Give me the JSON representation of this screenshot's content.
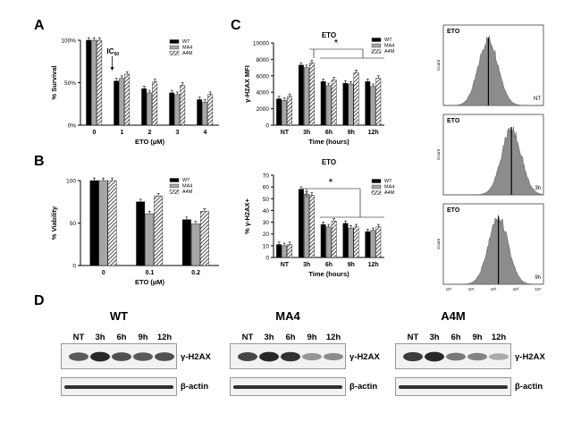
{
  "colors": {
    "wt": "#000000",
    "ma4": "#a6a6a6",
    "a4m": "hatch",
    "hist_fill": "#8c8c8c"
  },
  "panels": {
    "A": "A",
    "B": "B",
    "C": "C",
    "D": "D"
  },
  "legend": {
    "wt": "WT",
    "ma4": "MA4",
    "a4m": "A4M"
  },
  "chart_data": [
    {
      "id": "A",
      "type": "bar",
      "categories": [
        "0",
        "1",
        "2",
        "3",
        "4"
      ],
      "xlabel": "ETO (µM)",
      "ylabel": "% Survival",
      "yticks": [
        "0%",
        "50%",
        "100%"
      ],
      "ylim": [
        0,
        100
      ],
      "annotation": {
        "main": "IC",
        "sub": "50"
      },
      "series": [
        {
          "name": "WT",
          "values": [
            100,
            52,
            43,
            38,
            30
          ]
        },
        {
          "name": "MA4",
          "values": [
            100,
            55,
            38,
            36,
            27
          ]
        },
        {
          "name": "A4M",
          "values": [
            100,
            60,
            51,
            47,
            36
          ]
        }
      ]
    },
    {
      "id": "B",
      "type": "bar",
      "categories": [
        "0",
        "0.1",
        "0.2"
      ],
      "xlabel": "ETO (µM)",
      "ylabel": "% Viability",
      "yticks": [
        "0",
        "50",
        "100"
      ],
      "ylim": [
        0,
        100
      ],
      "series": [
        {
          "name": "WT",
          "values": [
            100,
            75,
            54
          ]
        },
        {
          "name": "MA4",
          "values": [
            100,
            61,
            49
          ]
        },
        {
          "name": "A4M",
          "values": [
            100,
            82,
            64
          ]
        }
      ]
    },
    {
      "id": "C1",
      "type": "bar",
      "title": "ETO",
      "categories": [
        "NT",
        "3h",
        "6h",
        "9h",
        "12h"
      ],
      "xlabel": "Time  (hours)",
      "ylabel": "γ-H2AX MFI",
      "yticks": [
        "0",
        "2000",
        "4000",
        "6000",
        "8000",
        "10000"
      ],
      "ylim": [
        0,
        10000
      ],
      "annotation": {
        "main": "*"
      },
      "series": [
        {
          "name": "WT",
          "values": [
            3200,
            7300,
            5300,
            5100,
            5300
          ]
        },
        {
          "name": "MA4",
          "values": [
            3000,
            7000,
            4800,
            5000,
            4700
          ]
        },
        {
          "name": "A4M",
          "values": [
            3500,
            7600,
            5500,
            6400,
            5700
          ]
        }
      ]
    },
    {
      "id": "C2",
      "type": "bar",
      "title": "ETO",
      "categories": [
        "NT",
        "3h",
        "6h",
        "9h",
        "12h"
      ],
      "xlabel": "Time  (hours)",
      "ylabel": "% γ-H2AX+",
      "yticks": [
        "0",
        "10",
        "20",
        "30",
        "40",
        "50",
        "60",
        "70"
      ],
      "ylim": [
        0,
        70
      ],
      "annotation": {
        "main": "*"
      },
      "series": [
        {
          "name": "WT",
          "values": [
            11,
            58,
            28,
            29,
            22
          ]
        },
        {
          "name": "MA4",
          "values": [
            10,
            54,
            26,
            25,
            23
          ]
        },
        {
          "name": "A4M",
          "values": [
            11,
            53,
            31,
            26,
            26
          ]
        }
      ]
    }
  ],
  "histograms": [
    {
      "label": "ETO",
      "time": "NT",
      "ylabel": "Count"
    },
    {
      "label": "ETO",
      "time": "3h",
      "ylabel": "Count"
    },
    {
      "label": "ETO",
      "time": "9h",
      "ylabel": "Count",
      "xlabel": "γ-H2AX",
      "xticks": [
        "10⁰",
        "10¹",
        "10²",
        "10³",
        "10⁴"
      ]
    }
  ],
  "blots": [
    {
      "title": "WT",
      "lanes": [
        "NT",
        "3h",
        "6h",
        "9h",
        "12h"
      ],
      "top_label": "γ-H2AX",
      "bottom_label": "β-actin",
      "intensity": [
        0.7,
        0.95,
        0.75,
        0.7,
        0.75
      ]
    },
    {
      "title": "MA4",
      "lanes": [
        "NT",
        "3h",
        "6h",
        "9h",
        "12h"
      ],
      "top_label": "γ-H2AX",
      "bottom_label": "β-actin",
      "intensity": [
        0.8,
        0.95,
        0.9,
        0.4,
        0.45
      ]
    },
    {
      "title": "A4M",
      "lanes": [
        "NT",
        "3h",
        "6h",
        "9h",
        "12h"
      ],
      "top_label": "γ-H2AX",
      "bottom_label": "β-actin",
      "intensity": [
        0.85,
        0.95,
        0.55,
        0.5,
        0.3
      ]
    }
  ]
}
